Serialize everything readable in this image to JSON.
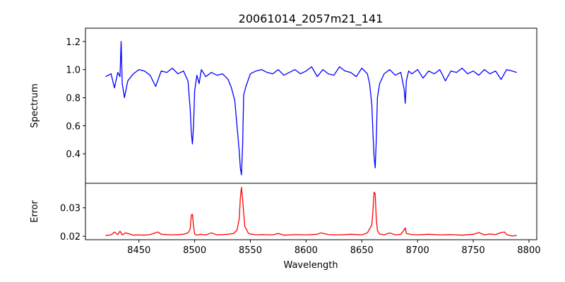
{
  "chart_data": [
    {
      "type": "line",
      "title": "20061014_2057m21_141",
      "xlabel": "",
      "ylabel": "Spectrum",
      "xlim": [
        8402,
        8807
      ],
      "ylim": [
        0.19,
        1.295
      ],
      "yticks": [
        "0.4",
        "0.6",
        "0.8",
        "1.0",
        "1.2"
      ],
      "colors": {
        "line": "#0000ff"
      },
      "series": [
        {
          "x": [
            8420,
            8425,
            8428,
            8431,
            8433,
            8434,
            8435,
            8437,
            8440,
            8445,
            8450,
            8455,
            8460,
            8465,
            8470,
            8475,
            8480,
            8485,
            8490,
            8494,
            8496,
            8497,
            8498,
            8499,
            8500,
            8502,
            8504,
            8506,
            8510,
            8515,
            8520,
            8525,
            8530,
            8533,
            8536,
            8538,
            8540,
            8541,
            8542,
            8543,
            8544,
            8546,
            8550,
            8555,
            8560,
            8565,
            8570,
            8575,
            8580,
            8585,
            8590,
            8595,
            8600,
            8605,
            8610,
            8615,
            8620,
            8625,
            8630,
            8635,
            8640,
            8645,
            8650,
            8655,
            8657,
            8659,
            8660,
            8661,
            8662,
            8663,
            8664,
            8666,
            8670,
            8675,
            8680,
            8685,
            8688,
            8689,
            8690,
            8692,
            8695,
            8700,
            8705,
            8710,
            8715,
            8720,
            8725,
            8730,
            8735,
            8740,
            8745,
            8750,
            8755,
            8760,
            8765,
            8770,
            8775,
            8780,
            8785,
            8789
          ],
          "y": [
            0.95,
            0.97,
            0.87,
            0.98,
            0.95,
            1.2,
            0.9,
            0.8,
            0.92,
            0.97,
            1.0,
            0.99,
            0.96,
            0.88,
            0.99,
            0.98,
            1.01,
            0.97,
            0.99,
            0.92,
            0.72,
            0.55,
            0.47,
            0.6,
            0.85,
            0.96,
            0.9,
            1.0,
            0.95,
            0.98,
            0.96,
            0.97,
            0.93,
            0.87,
            0.78,
            0.6,
            0.42,
            0.3,
            0.25,
            0.45,
            0.82,
            0.88,
            0.97,
            0.99,
            1.0,
            0.98,
            0.97,
            1.0,
            0.96,
            0.98,
            1.0,
            0.97,
            0.99,
            1.02,
            0.95,
            1.0,
            0.97,
            0.96,
            1.02,
            0.99,
            0.98,
            0.95,
            1.01,
            0.97,
            0.9,
            0.75,
            0.55,
            0.38,
            0.3,
            0.5,
            0.8,
            0.9,
            0.97,
            1.0,
            0.96,
            0.98,
            0.86,
            0.76,
            0.92,
            0.99,
            0.97,
            1.0,
            0.94,
            0.99,
            0.97,
            1.0,
            0.92,
            0.99,
            0.98,
            1.01,
            0.97,
            0.99,
            0.96,
            1.0,
            0.97,
            0.99,
            0.93,
            1.0,
            0.99,
            0.98
          ]
        }
      ]
    },
    {
      "type": "line",
      "title": "",
      "xlabel": "Wavelength",
      "ylabel": "Error",
      "xlim": [
        8402,
        8807
      ],
      "ylim": [
        0.0188,
        0.0386
      ],
      "xticks": [
        "8450",
        "8500",
        "8550",
        "8600",
        "8650",
        "8700",
        "8750",
        "8800"
      ],
      "yticks": [
        "0.02",
        "0.03"
      ],
      "colors": {
        "line": "#ff0000"
      },
      "series": [
        {
          "x": [
            8420,
            8425,
            8428,
            8431,
            8433,
            8435,
            8438,
            8445,
            8450,
            8455,
            8460,
            8467,
            8470,
            8480,
            8490,
            8494,
            8496,
            8497,
            8498,
            8499,
            8500,
            8502,
            8505,
            8510,
            8515,
            8520,
            8525,
            8530,
            8535,
            8538,
            8540,
            8541,
            8542,
            8543,
            8545,
            8548,
            8550,
            8555,
            8560,
            8570,
            8575,
            8580,
            8590,
            8600,
            8610,
            8613,
            8620,
            8630,
            8640,
            8650,
            8655,
            8659,
            8660,
            8661,
            8662,
            8663,
            8664,
            8666,
            8670,
            8675,
            8680,
            8685,
            8688,
            8689,
            8690,
            8695,
            8700,
            8710,
            8720,
            8730,
            8740,
            8750,
            8755,
            8760,
            8765,
            8770,
            8775,
            8778,
            8780,
            8785,
            8789
          ],
          "y": [
            0.0203,
            0.0205,
            0.0215,
            0.0206,
            0.0218,
            0.0205,
            0.0212,
            0.0204,
            0.0205,
            0.0204,
            0.0206,
            0.0215,
            0.0207,
            0.0205,
            0.0207,
            0.0212,
            0.0225,
            0.0275,
            0.0277,
            0.0235,
            0.0208,
            0.0204,
            0.0207,
            0.0205,
            0.0212,
            0.0205,
            0.0206,
            0.0207,
            0.021,
            0.0222,
            0.026,
            0.0335,
            0.0372,
            0.033,
            0.0235,
            0.0212,
            0.0208,
            0.0205,
            0.0206,
            0.0205,
            0.021,
            0.0204,
            0.0206,
            0.0205,
            0.0207,
            0.0212,
            0.0206,
            0.0205,
            0.0207,
            0.0205,
            0.0212,
            0.024,
            0.029,
            0.0355,
            0.035,
            0.026,
            0.022,
            0.0208,
            0.0205,
            0.0212,
            0.0205,
            0.0207,
            0.0222,
            0.023,
            0.021,
            0.0206,
            0.0205,
            0.0207,
            0.0205,
            0.0206,
            0.0204,
            0.0207,
            0.0213,
            0.0205,
            0.0208,
            0.0206,
            0.0213,
            0.0215,
            0.0206,
            0.0201,
            0.0203
          ]
        }
      ]
    }
  ]
}
